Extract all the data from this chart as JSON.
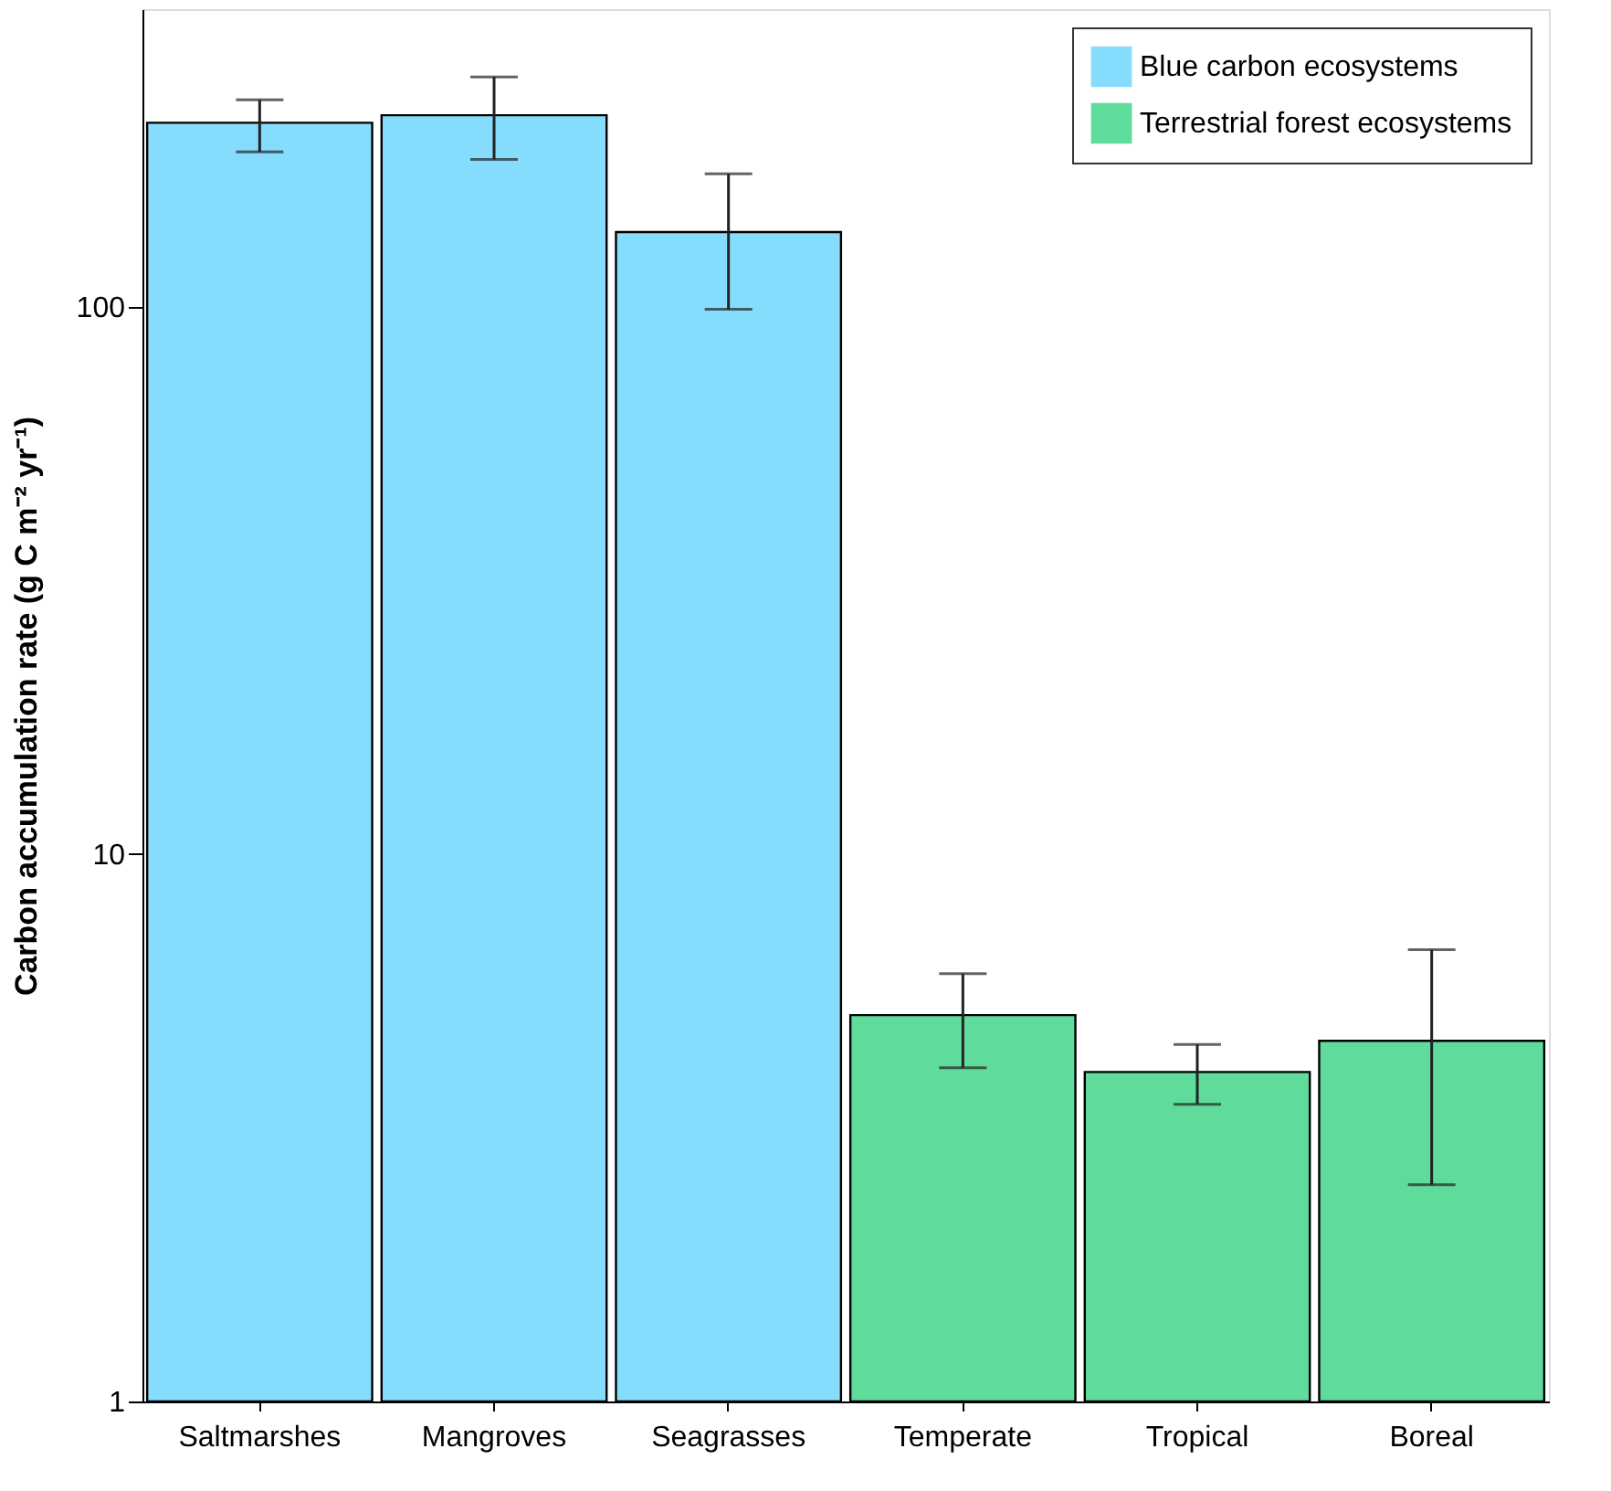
{
  "chart_data": {
    "type": "bar",
    "ylabel": "Carbon accumulation rate (g C m⁻² yr⁻¹)",
    "categories": [
      "Saltmarshes",
      "Mangroves",
      "Seagrasses",
      "Temperate",
      "Tropical",
      "Boreal"
    ],
    "series": [
      {
        "name": "Blue carbon ecosystems",
        "color": "#85dcfc",
        "values": [
          217,
          224,
          137,
          null,
          null,
          null
        ],
        "errors": [
          [
            192,
            239
          ],
          [
            186,
            263
          ],
          [
            99,
            175
          ],
          null,
          null,
          null
        ]
      },
      {
        "name": "Terrestrial forest ecosystems",
        "color": "#5fdc9c",
        "values": [
          null,
          null,
          null,
          5.08,
          4.0,
          4.56
        ],
        "errors": [
          null,
          null,
          null,
          [
            4.07,
            6.05
          ],
          [
            3.49,
            4.49
          ],
          [
            2.49,
            6.69
          ]
        ]
      }
    ],
    "log": true,
    "ylim": [
      1,
      350
    ],
    "yticks": [
      1,
      10,
      100
    ],
    "grid": false,
    "legend": "top right"
  }
}
